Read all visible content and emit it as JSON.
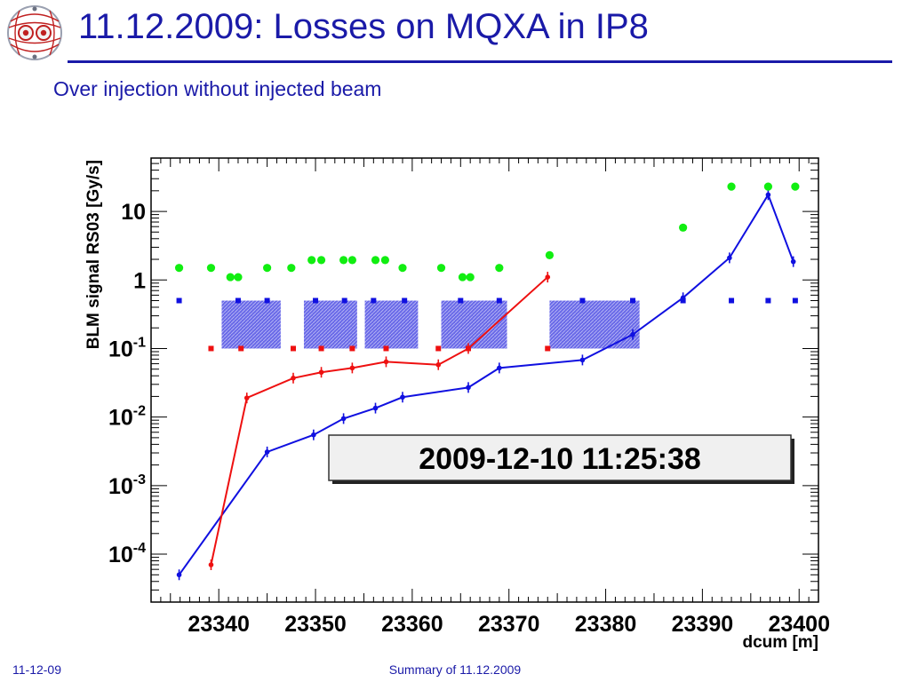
{
  "slide": {
    "title": "11.12.2009: Losses on MQXA in IP8",
    "subtitle": "Over injection without injected beam",
    "footer_left": "11-12-09",
    "footer_center": "Summary of 11.12.2009"
  },
  "colors": {
    "title": "#1a1aa8",
    "series_blue": "#1010e0",
    "series_red": "#ee1010",
    "markers_green": "#11ee11",
    "shaded_bands": "#6a6ae8"
  },
  "chart_data": {
    "type": "scatter",
    "xlabel": "dcum [m]",
    "ylabel": "BLM signal RS03 [Gy/s]",
    "xlim": [
      23333,
      23402
    ],
    "ylim": [
      2e-05,
      60
    ],
    "yscale": "log",
    "xticks": [
      23340,
      23350,
      23360,
      23370,
      23380,
      23390,
      23400
    ],
    "yticks": [
      {
        "value": 0.0001,
        "label": "10",
        "exp": "-4"
      },
      {
        "value": 0.001,
        "label": "10",
        "exp": "-3"
      },
      {
        "value": 0.01,
        "label": "10",
        "exp": "-2"
      },
      {
        "value": 0.1,
        "label": "10",
        "exp": "-1"
      },
      {
        "value": 1,
        "label": "1",
        "exp": ""
      },
      {
        "value": 10,
        "label": "10",
        "exp": ""
      }
    ],
    "annotation": "2009-12-10 11:25:38",
    "bands": [
      {
        "x0": 23340.3,
        "x1": 23346.4,
        "y0": 0.1,
        "y1": 0.5
      },
      {
        "x0": 23348.8,
        "x1": 23354.3,
        "y0": 0.1,
        "y1": 0.5
      },
      {
        "x0": 23355.1,
        "x1": 23360.6,
        "y0": 0.1,
        "y1": 0.5
      },
      {
        "x0": 23363.0,
        "x1": 23369.8,
        "y0": 0.1,
        "y1": 0.5
      },
      {
        "x0": 23374.2,
        "x1": 23383.5,
        "y0": 0.1,
        "y1": 0.5
      }
    ],
    "series": [
      {
        "color": "blue",
        "style": "line",
        "x": [
          23335.9,
          23345.0,
          23349.8,
          23352.9,
          23356.2,
          23359.0,
          23365.8,
          23369.0,
          23377.6,
          23382.8,
          23388.0,
          23392.8,
          23396.8,
          23399.4
        ],
        "y": [
          5e-05,
          0.0031,
          0.0055,
          0.0095,
          0.0135,
          0.0195,
          0.027,
          0.052,
          0.068,
          0.16,
          0.55,
          2.1,
          17.5,
          1.85
        ]
      },
      {
        "color": "red",
        "style": "line",
        "x": [
          23339.2,
          23342.9,
          23347.7,
          23350.6,
          23353.8,
          23357.3,
          23362.7,
          23365.8,
          23374.0
        ],
        "y": [
          7e-05,
          0.019,
          0.037,
          0.045,
          0.052,
          0.064,
          0.058,
          0.1,
          1.1
        ]
      },
      {
        "color": "green",
        "style": "markers",
        "x": [
          23335.9,
          23339.2,
          23341.2,
          23342.0,
          23345.0,
          23347.5,
          23349.6,
          23350.6,
          23352.9,
          23353.8,
          23356.2,
          23357.2,
          23359.0,
          23363.0,
          23365.2,
          23366.0,
          23369.0,
          23374.2,
          23388.0,
          23393.0,
          23396.8,
          23399.6
        ],
        "y": [
          1.5,
          1.5,
          1.1,
          1.1,
          1.5,
          1.5,
          1.95,
          1.95,
          1.95,
          1.95,
          1.95,
          1.95,
          1.5,
          1.5,
          1.1,
          1.1,
          1.5,
          2.3,
          5.8,
          23,
          23,
          23
        ]
      },
      {
        "color": "blue",
        "style": "markers",
        "x": [
          23335.9,
          23342.0,
          23345.0,
          23350.0,
          23353.0,
          23356.0,
          23359.2,
          23365.0,
          23369.0,
          23377.6,
          23382.8,
          23388.0,
          23393.0,
          23396.8,
          23399.6
        ],
        "y": [
          0.5,
          0.5,
          0.5,
          0.5,
          0.5,
          0.5,
          0.5,
          0.5,
          0.5,
          0.5,
          0.5,
          0.5,
          0.5,
          0.5,
          0.5
        ]
      },
      {
        "color": "red",
        "style": "markers",
        "x": [
          23339.2,
          23342.3,
          23347.7,
          23350.6,
          23353.8,
          23357.3,
          23362.7,
          23365.8,
          23374.0
        ],
        "y": [
          0.1,
          0.1,
          0.1,
          0.1,
          0.1,
          0.1,
          0.1,
          0.1,
          0.1
        ]
      }
    ]
  }
}
